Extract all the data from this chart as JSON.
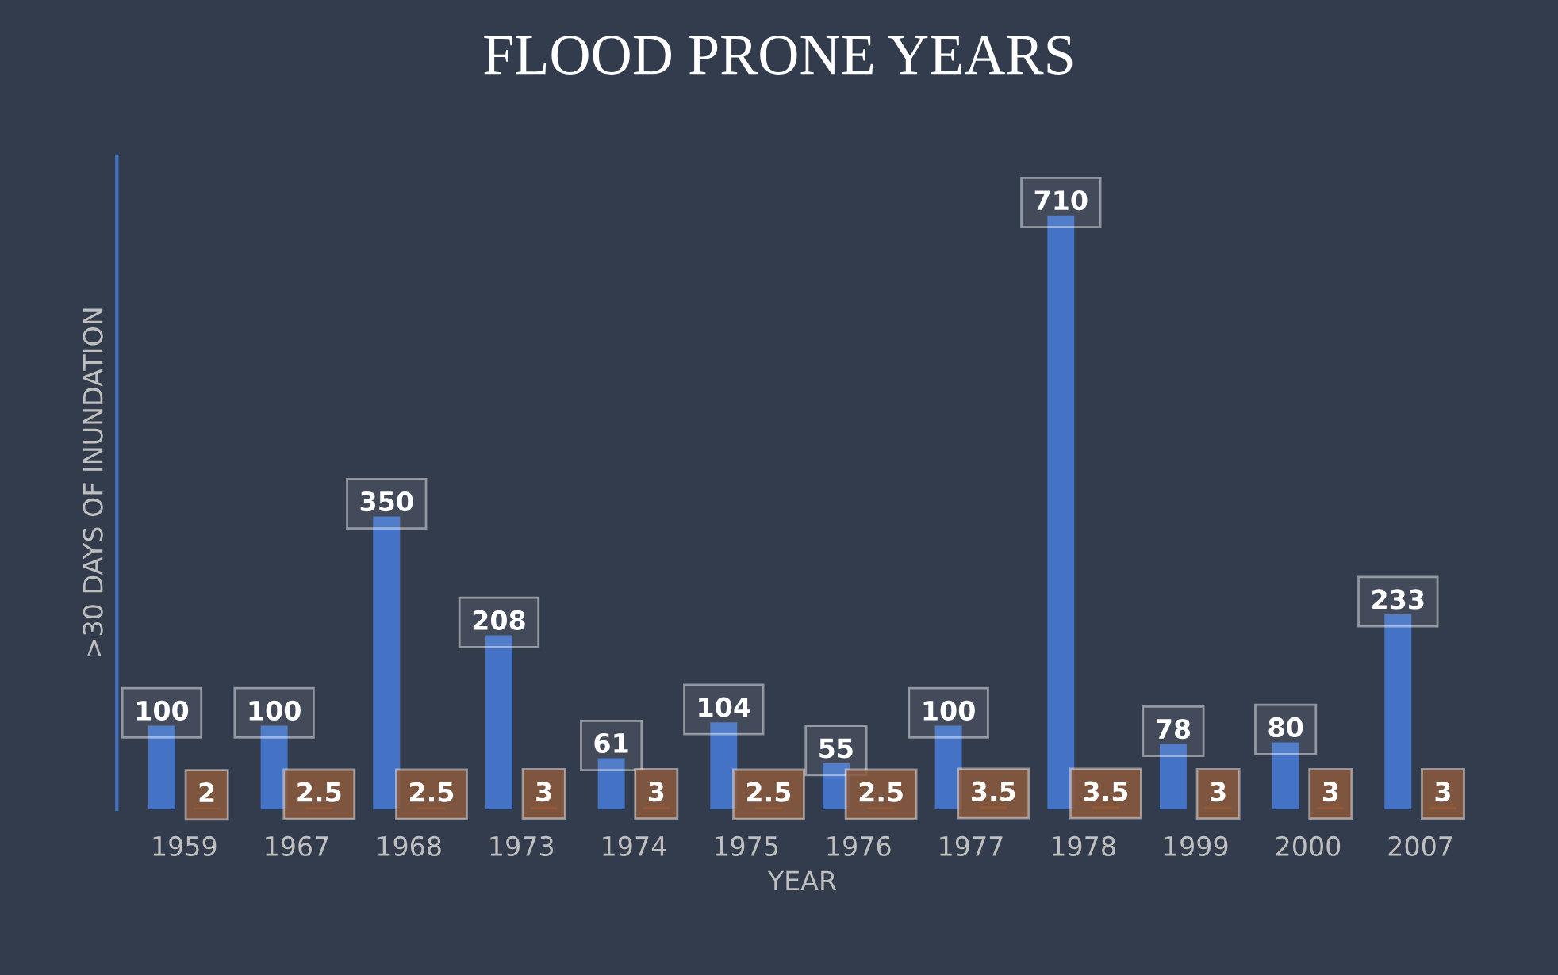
{
  "chart_data": {
    "type": "bar",
    "title": "FLOOD PRONE YEARS",
    "xlabel": "YEAR",
    "ylabel": ">30 DAYS OF INUNDATION",
    "categories": [
      "1959",
      "1967",
      "1968",
      "1973",
      "1974",
      "1975",
      "1976",
      "1977",
      "1978",
      "1999",
      "2000",
      "2007"
    ],
    "series": [
      {
        "color": "#4472c4",
        "values": [
          100,
          100,
          350,
          208,
          61,
          104,
          55,
          100,
          710,
          78,
          80,
          233
        ]
      },
      {
        "color": "#c55a11",
        "values": [
          2,
          2.5,
          2.5,
          3,
          3,
          2.5,
          2.5,
          3.5,
          3.5,
          3,
          3,
          3
        ]
      }
    ],
    "data_labels": true,
    "grid": false,
    "legend": false
  }
}
